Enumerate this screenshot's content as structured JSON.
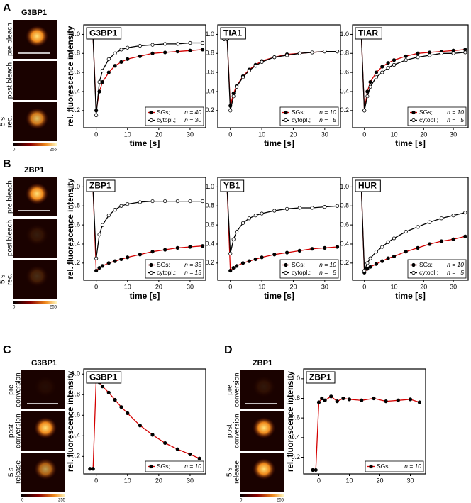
{
  "figure": {
    "panels": [
      {
        "letter": "A",
        "protein": "G3BP1",
        "image_labels": [
          [
            "pre bleach"
          ],
          [
            "post bleach"
          ],
          [
            "5 s",
            "rec."
          ]
        ],
        "colorbar_ticks": [
          0,
          255
        ]
      },
      {
        "letter": "B",
        "protein": "ZBP1",
        "image_labels": [
          [
            "pre bleach"
          ],
          [
            "post bleach"
          ],
          [
            "5 s",
            "rec."
          ]
        ],
        "colorbar_ticks": [
          0,
          255
        ]
      },
      {
        "letter": "C",
        "protein": "G3BP1",
        "image_labels": [
          [
            "pre",
            "conversion"
          ],
          [
            "post",
            "conversion"
          ],
          [
            "5 s",
            "release"
          ]
        ],
        "colorbar_ticks": [
          0,
          255
        ]
      },
      {
        "letter": "D",
        "protein": "ZBP1",
        "image_labels": [
          [
            "pre",
            "conversion"
          ],
          [
            "post",
            "conversion"
          ],
          [
            "5 s",
            "release"
          ]
        ],
        "colorbar_ticks": [
          0,
          255
        ]
      }
    ]
  },
  "chart_data": [
    {
      "type": "line",
      "title": "G3BP1",
      "xlabel": "time [s]",
      "ylabel": "rel. fluorescence intensity",
      "xlim": [
        -4,
        35
      ],
      "xticks": [
        0,
        10,
        20,
        30
      ],
      "ylim": [
        0.02,
        1.1
      ],
      "yticks": [
        0.2,
        0.4,
        0.6,
        0.8,
        {
          "value": 1,
          "label": "1.0"
        }
      ],
      "x": [
        -2,
        -1,
        0,
        1,
        2,
        4,
        6,
        8,
        10,
        14,
        18,
        22,
        26,
        30,
        34
      ],
      "series": [
        {
          "name": "SGs;",
          "count_label": "n = 40",
          "color": "#d40000",
          "marker": "filled",
          "values": [
            0.97,
            0.97,
            0.2,
            0.4,
            0.5,
            0.6,
            0.67,
            0.71,
            0.74,
            0.77,
            0.8,
            0.81,
            0.82,
            0.83,
            0.84
          ]
        },
        {
          "name": "cytopl.;",
          "count_label": "n = 30",
          "color": "#000000",
          "marker": "open",
          "values": [
            0.97,
            0.97,
            0.15,
            0.5,
            0.62,
            0.74,
            0.8,
            0.84,
            0.86,
            0.88,
            0.89,
            0.9,
            0.9,
            0.91,
            0.91
          ]
        }
      ]
    },
    {
      "type": "line",
      "title": "TIA1",
      "xlabel": "time [s]",
      "xlim": [
        -4,
        35
      ],
      "xticks": [
        0,
        10,
        20,
        30
      ],
      "ylim": [
        0.02,
        1.1
      ],
      "yticks": [
        0.2,
        0.4,
        0.6,
        0.8,
        {
          "value": 1,
          "label": "1.0"
        }
      ],
      "x": [
        -2,
        -1,
        0,
        1,
        2,
        4,
        6,
        8,
        10,
        14,
        18,
        22,
        26,
        30,
        34
      ],
      "series": [
        {
          "name": "SGs;",
          "count_label": "n = 10",
          "color": "#d40000",
          "marker": "filled",
          "values": [
            0.95,
            0.95,
            0.25,
            0.38,
            0.46,
            0.56,
            0.63,
            0.68,
            0.72,
            0.76,
            0.79,
            0.8,
            0.81,
            0.82,
            0.82
          ]
        },
        {
          "name": "cytopl.;",
          "count_label": "n =   5",
          "color": "#000000",
          "marker": "open",
          "values": [
            0.95,
            0.95,
            0.2,
            0.35,
            0.45,
            0.55,
            0.62,
            0.67,
            0.71,
            0.76,
            0.78,
            0.8,
            0.81,
            0.82,
            0.82
          ]
        }
      ]
    },
    {
      "type": "line",
      "title": "TIAR",
      "xlabel": "time [s]",
      "xlim": [
        -4,
        35
      ],
      "xticks": [
        0,
        10,
        20,
        30
      ],
      "ylim": [
        0.02,
        1.1
      ],
      "yticks": [
        0.2,
        0.4,
        0.6,
        0.8,
        {
          "value": 1,
          "label": "1.0"
        }
      ],
      "x": [
        -2,
        -1,
        0,
        1,
        2,
        4,
        6,
        8,
        10,
        14,
        18,
        22,
        26,
        30,
        34
      ],
      "series": [
        {
          "name": "SGs;",
          "count_label": "n = 10",
          "color": "#d40000",
          "marker": "filled",
          "values": [
            0.97,
            0.97,
            0.2,
            0.4,
            0.5,
            0.6,
            0.66,
            0.7,
            0.73,
            0.77,
            0.8,
            0.81,
            0.82,
            0.83,
            0.84
          ]
        },
        {
          "name": "cytopl.;",
          "count_label": "n =   5",
          "color": "#000000",
          "marker": "open",
          "values": [
            0.97,
            0.97,
            0.2,
            0.35,
            0.45,
            0.55,
            0.6,
            0.65,
            0.68,
            0.73,
            0.76,
            0.78,
            0.8,
            0.8,
            0.81
          ]
        }
      ]
    },
    {
      "type": "line",
      "title": "ZBP1",
      "xlabel": "time [s]",
      "ylabel": "rel. fluorescence intensity",
      "xlim": [
        -4,
        35
      ],
      "xticks": [
        0,
        10,
        20,
        30
      ],
      "ylim": [
        0.02,
        1.1
      ],
      "yticks": [
        0.2,
        0.4,
        0.6,
        0.8,
        {
          "value": 1,
          "label": "1.0"
        }
      ],
      "x": [
        -2,
        -1,
        0,
        1,
        2,
        4,
        6,
        8,
        10,
        14,
        18,
        22,
        26,
        30,
        34
      ],
      "series": [
        {
          "name": "SGs;",
          "count_label": "n = 35",
          "color": "#d40000",
          "marker": "filled",
          "values": [
            0.97,
            0.97,
            0.12,
            0.15,
            0.17,
            0.2,
            0.22,
            0.24,
            0.26,
            0.29,
            0.32,
            0.34,
            0.36,
            0.37,
            0.38
          ]
        },
        {
          "name": "cytopl.;",
          "count_label": "n = 15",
          "color": "#000000",
          "marker": "open",
          "values": [
            0.97,
            0.97,
            0.25,
            0.5,
            0.6,
            0.7,
            0.76,
            0.8,
            0.82,
            0.84,
            0.85,
            0.85,
            0.85,
            0.85,
            0.85
          ]
        }
      ]
    },
    {
      "type": "line",
      "title": "YB1",
      "xlabel": "time [s]",
      "xlim": [
        -4,
        35
      ],
      "xticks": [
        0,
        10,
        20,
        30
      ],
      "ylim": [
        0.02,
        1.1
      ],
      "yticks": [
        0.2,
        0.4,
        0.6,
        0.8,
        {
          "value": 1,
          "label": "1.0"
        }
      ],
      "x": [
        -2,
        -1,
        0,
        1,
        2,
        4,
        6,
        8,
        10,
        14,
        18,
        22,
        26,
        30,
        34
      ],
      "series": [
        {
          "name": "SGs;",
          "count_label": "n = 10",
          "color": "#d40000",
          "marker": "filled",
          "values": [
            0.97,
            0.97,
            0.12,
            0.15,
            0.17,
            0.2,
            0.22,
            0.24,
            0.26,
            0.29,
            0.31,
            0.33,
            0.35,
            0.36,
            0.37
          ]
        },
        {
          "name": "cytopl.;",
          "count_label": "n =   5",
          "color": "#000000",
          "marker": "open",
          "values": [
            0.97,
            0.97,
            0.3,
            0.45,
            0.53,
            0.62,
            0.67,
            0.7,
            0.72,
            0.75,
            0.77,
            0.78,
            0.78,
            0.79,
            0.8
          ]
        }
      ]
    },
    {
      "type": "line",
      "title": "HUR",
      "xlabel": "time [s]",
      "xlim": [
        -4,
        35
      ],
      "xticks": [
        0,
        10,
        20,
        30
      ],
      "ylim": [
        0.02,
        1.1
      ],
      "yticks": [
        0.2,
        0.4,
        0.6,
        0.8,
        {
          "value": 1,
          "label": "1.0"
        }
      ],
      "x": [
        -2,
        -1,
        0,
        1,
        2,
        4,
        6,
        8,
        10,
        14,
        18,
        22,
        26,
        30,
        34
      ],
      "series": [
        {
          "name": "SGs;",
          "count_label": "n = 10",
          "color": "#d40000",
          "marker": "filled",
          "values": [
            0.97,
            0.97,
            0.1,
            0.14,
            0.16,
            0.19,
            0.22,
            0.25,
            0.27,
            0.32,
            0.36,
            0.4,
            0.43,
            0.45,
            0.48
          ]
        },
        {
          "name": "cytopl.;",
          "count_label": "n =   5",
          "color": "#000000",
          "marker": "open",
          "values": [
            0.97,
            0.97,
            0.12,
            0.2,
            0.25,
            0.32,
            0.37,
            0.42,
            0.46,
            0.53,
            0.58,
            0.63,
            0.67,
            0.7,
            0.73
          ]
        }
      ]
    },
    {
      "type": "line",
      "title": "G3BP1",
      "ylabel": "rel. fluorescence intensity",
      "xlim": [
        -4,
        35
      ],
      "xticks": [
        0,
        10,
        20,
        30
      ],
      "ylim": [
        0.03,
        1.05
      ],
      "yticks": [
        0.2,
        0.4,
        0.6,
        0.8,
        {
          "value": 1,
          "label": "1.0"
        }
      ],
      "x": [
        -2,
        -1,
        0,
        1,
        2,
        4,
        6,
        8,
        10,
        14,
        18,
        22,
        26,
        30,
        33
      ],
      "series": [
        {
          "name": "SGs;",
          "count_label": "n = 10",
          "color": "#d40000",
          "marker": "filled",
          "values": [
            0.08,
            0.08,
            0.95,
            0.92,
            0.88,
            0.82,
            0.75,
            0.68,
            0.62,
            0.5,
            0.41,
            0.33,
            0.27,
            0.22,
            0.18
          ]
        }
      ]
    },
    {
      "type": "line",
      "title": "ZBP1",
      "ylabel": "rel. fluorescence intensity",
      "xlim": [
        -5,
        35
      ],
      "xticks": [
        0,
        10,
        20,
        30
      ],
      "ylim": [
        0.03,
        1.1
      ],
      "yticks": [
        0.2,
        0.4,
        0.6,
        0.8,
        {
          "value": 1,
          "label": "1.0"
        }
      ],
      "x": [
        -2,
        -1,
        0,
        1,
        2,
        4,
        6,
        8,
        10,
        14,
        18,
        22,
        26,
        30,
        33
      ],
      "series": [
        {
          "name": "SGs;",
          "count_label": "n = 10",
          "color": "#d40000",
          "marker": "filled",
          "values": [
            0.07,
            0.07,
            0.76,
            0.8,
            0.78,
            0.82,
            0.77,
            0.8,
            0.79,
            0.78,
            0.8,
            0.77,
            0.78,
            0.79,
            0.76
          ]
        }
      ]
    }
  ]
}
